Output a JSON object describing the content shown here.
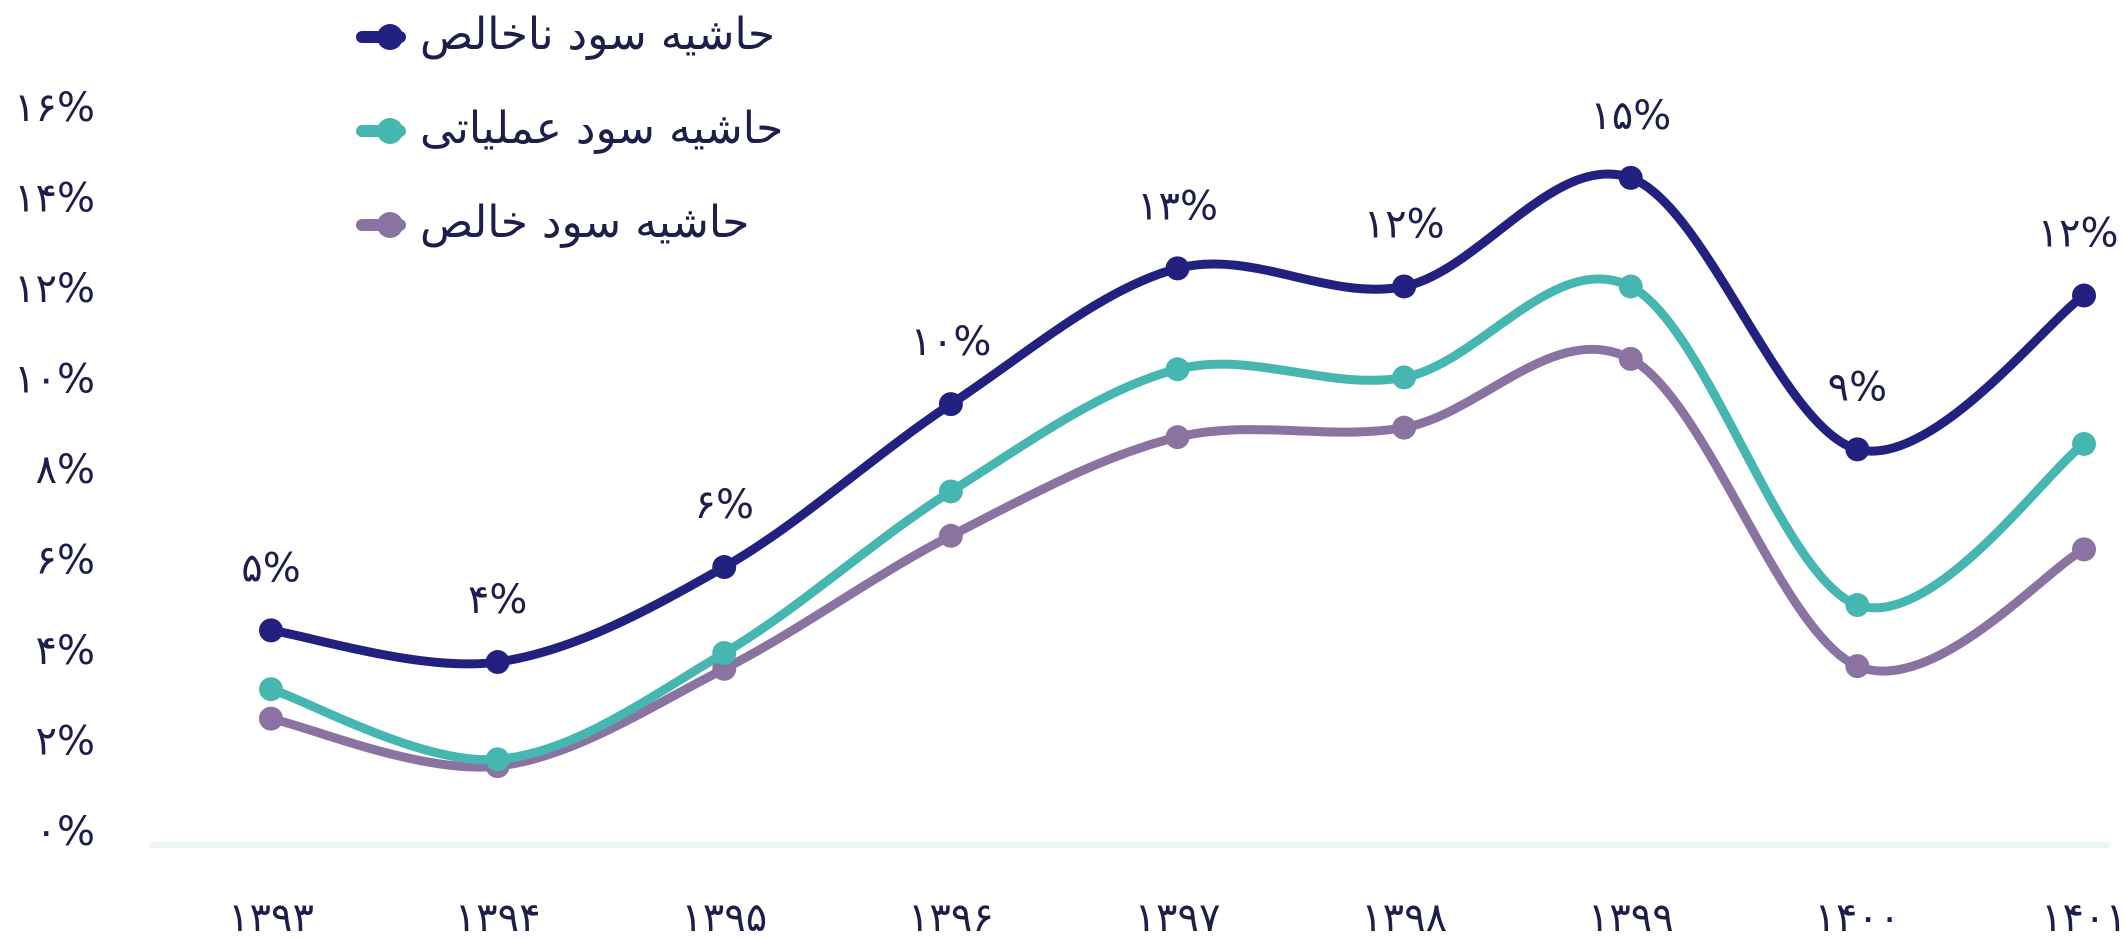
{
  "chart_data": {
    "type": "line",
    "categories": [
      "۱۳۹۳",
      "۱۳۹۴",
      "۱۳۹۵",
      "۱۳۹۶",
      "۱۳۹۷",
      "۱۳۹۸",
      "۱۳۹۹",
      "۱۴۰۰",
      "۱۴۰۱"
    ],
    "series": [
      {
        "name": "حاشیه سود ناخالص",
        "color": "#23217f",
        "values": [
          4.5,
          3.8,
          5.9,
          9.5,
          12.5,
          12.1,
          14.5,
          8.5,
          11.9
        ],
        "value_labels": [
          "۵%",
          "۴%",
          "۶%",
          "۱۰%",
          "۱۳%",
          "۱۲%",
          "۱۵%",
          "۹%",
          "۱۲%"
        ]
      },
      {
        "name": "حاشیه سود عملیاتی",
        "color": "#45b7b0",
        "values": [
          3.2,
          1.65,
          4.0,
          7.57,
          10.27,
          10.09,
          12.1,
          5.06,
          8.62
        ]
      },
      {
        "name": "حاشیه سود خالص",
        "color": "#8a73a0",
        "values": [
          2.55,
          1.5,
          3.65,
          6.59,
          8.77,
          8.98,
          10.5,
          3.71,
          6.29
        ]
      }
    ],
    "ylim": [
      0,
      16
    ],
    "yticks": [
      {
        "value": 0,
        "label": "۰%"
      },
      {
        "value": 2,
        "label": "۲%"
      },
      {
        "value": 4,
        "label": "۴%"
      },
      {
        "value": 6,
        "label": "۶%"
      },
      {
        "value": 8,
        "label": "۸%"
      },
      {
        "value": 10,
        "label": "۱۰%"
      },
      {
        "value": 12,
        "label": "۱۲%"
      },
      {
        "value": 14,
        "label": "۱۴%"
      },
      {
        "value": 16,
        "label": "۱۶%"
      }
    ]
  }
}
